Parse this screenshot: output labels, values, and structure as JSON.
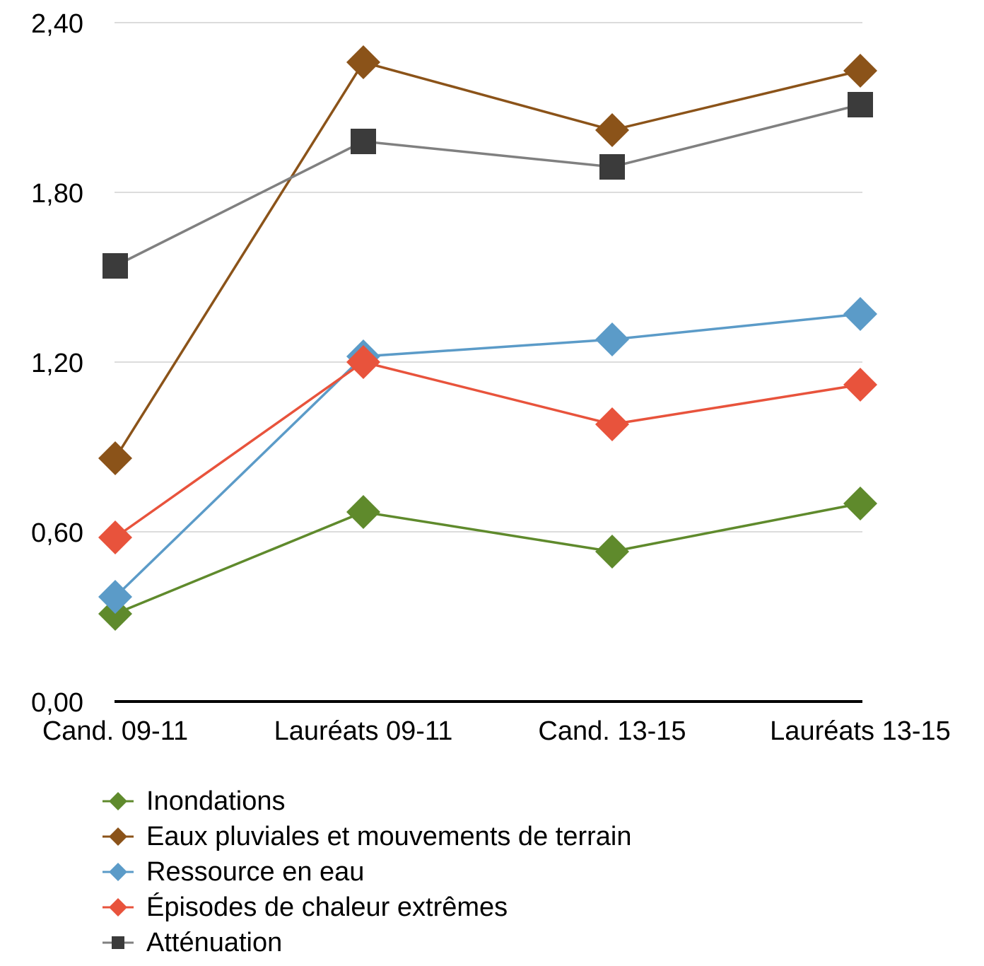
{
  "chart_data": {
    "type": "line",
    "categories": [
      "Cand. 09-11",
      "Lauréats 09-11",
      "Cand. 13-15",
      "Lauréats 13-15"
    ],
    "y_ticks": [
      "0,00",
      "0,60",
      "1,20",
      "1,80",
      "2,40"
    ],
    "ylim": [
      0,
      2.4
    ],
    "grid": true,
    "legend_position": "bottom",
    "series": [
      {
        "name": "Inondations",
        "values": [
          0.31,
          0.67,
          0.53,
          0.7
        ],
        "color": "#5f8a2c",
        "marker": "diamond"
      },
      {
        "name": "Eaux pluviales et mouvements de terrain",
        "values": [
          0.86,
          2.26,
          2.02,
          2.23
        ],
        "color": "#8b5319",
        "marker": "diamond"
      },
      {
        "name": "Ressource en eau",
        "values": [
          0.37,
          1.22,
          1.28,
          1.37
        ],
        "color": "#5b9bc8",
        "marker": "diamond"
      },
      {
        "name": "Épisodes de chaleur extrêmes",
        "values": [
          0.58,
          1.2,
          0.98,
          1.12
        ],
        "color": "#e8533c",
        "marker": "diamond"
      },
      {
        "name": "Atténuation",
        "values": [
          1.54,
          1.98,
          1.89,
          2.11
        ],
        "color": "#3b3b3b",
        "line_color": "#808080",
        "marker": "square"
      }
    ]
  }
}
